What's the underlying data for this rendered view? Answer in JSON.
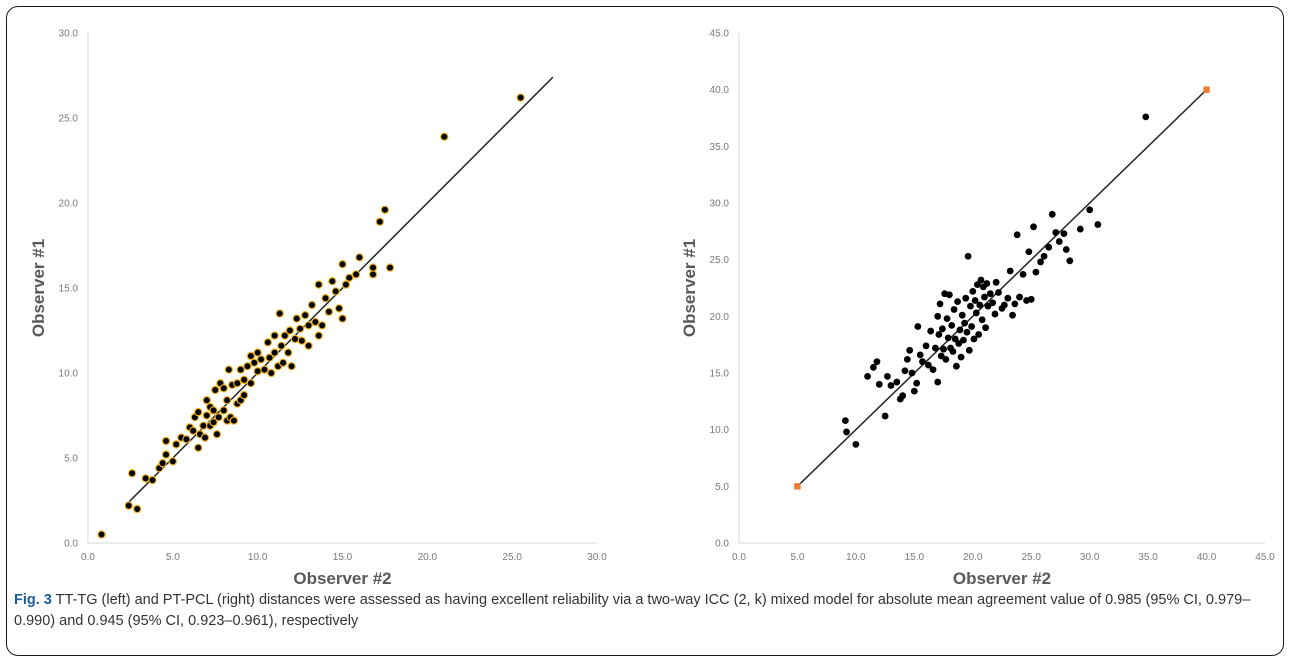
{
  "caption": {
    "label": "Fig. 3",
    "text": " TT-TG (left) and PT-PCL (right) distances were assessed as having excellent reliability via a two-way ICC (2, k) mixed model for absolute mean agreement value of 0.985 (95% CI, 0.979–0.990) and 0.945 (95% CI, 0.923–0.961), respectively"
  },
  "chart_data": [
    {
      "type": "scatter",
      "xlabel": "Observer #2",
      "ylabel": "Observer #1",
      "xlim": [
        0,
        30
      ],
      "ylim": [
        0,
        30
      ],
      "xticks": [
        "0.0",
        "5.0",
        "10.0",
        "15.0",
        "20.0",
        "25.0",
        "30.0"
      ],
      "yticks": [
        "0.0",
        "5.0",
        "10.0",
        "15.0",
        "20.0",
        "25.0",
        "30.0"
      ],
      "grid": false,
      "marker_color": "#000000",
      "marker_edge_color": "#f0b323",
      "trend_line": {
        "x": [
          2.4,
          27.4
        ],
        "y": [
          2.4,
          27.4
        ]
      },
      "points": [
        [
          0.8,
          0.5
        ],
        [
          2.4,
          2.2
        ],
        [
          2.6,
          4.1
        ],
        [
          2.9,
          2.0
        ],
        [
          3.4,
          3.8
        ],
        [
          3.8,
          3.7
        ],
        [
          4.2,
          4.4
        ],
        [
          4.4,
          4.7
        ],
        [
          4.6,
          5.2
        ],
        [
          4.6,
          6.0
        ],
        [
          5.0,
          4.8
        ],
        [
          5.2,
          5.8
        ],
        [
          5.5,
          6.2
        ],
        [
          5.8,
          6.1
        ],
        [
          6.0,
          6.8
        ],
        [
          6.2,
          6.6
        ],
        [
          6.3,
          7.4
        ],
        [
          6.5,
          5.6
        ],
        [
          6.5,
          7.7
        ],
        [
          6.6,
          6.4
        ],
        [
          6.8,
          6.9
        ],
        [
          6.9,
          6.2
        ],
        [
          7.0,
          7.5
        ],
        [
          7.0,
          8.4
        ],
        [
          7.2,
          6.9
        ],
        [
          7.2,
          8.0
        ],
        [
          7.4,
          7.1
        ],
        [
          7.4,
          7.8
        ],
        [
          7.5,
          9.0
        ],
        [
          7.6,
          6.4
        ],
        [
          7.7,
          7.4
        ],
        [
          7.8,
          9.4
        ],
        [
          8.0,
          7.8
        ],
        [
          8.0,
          9.1
        ],
        [
          8.2,
          7.2
        ],
        [
          8.2,
          8.4
        ],
        [
          8.3,
          10.2
        ],
        [
          8.4,
          7.4
        ],
        [
          8.5,
          9.3
        ],
        [
          8.6,
          7.2
        ],
        [
          8.8,
          8.2
        ],
        [
          8.8,
          9.4
        ],
        [
          9.0,
          8.4
        ],
        [
          9.0,
          10.2
        ],
        [
          9.2,
          8.7
        ],
        [
          9.2,
          9.6
        ],
        [
          9.4,
          10.4
        ],
        [
          9.6,
          11.0
        ],
        [
          9.6,
          9.4
        ],
        [
          9.8,
          10.6
        ],
        [
          10.0,
          11.2
        ],
        [
          10.0,
          10.1
        ],
        [
          10.2,
          10.8
        ],
        [
          10.4,
          10.2
        ],
        [
          10.6,
          11.8
        ],
        [
          10.7,
          10.9
        ],
        [
          10.8,
          10.0
        ],
        [
          11.0,
          12.2
        ],
        [
          11.0,
          11.2
        ],
        [
          11.2,
          10.4
        ],
        [
          11.3,
          13.5
        ],
        [
          11.4,
          11.6
        ],
        [
          11.5,
          10.6
        ],
        [
          11.6,
          12.2
        ],
        [
          11.8,
          11.2
        ],
        [
          11.9,
          12.5
        ],
        [
          12.0,
          10.4
        ],
        [
          12.2,
          12.0
        ],
        [
          12.3,
          13.2
        ],
        [
          12.5,
          12.6
        ],
        [
          12.6,
          11.9
        ],
        [
          12.8,
          13.4
        ],
        [
          13.0,
          12.8
        ],
        [
          13.0,
          11.6
        ],
        [
          13.2,
          14.0
        ],
        [
          13.4,
          13.0
        ],
        [
          13.6,
          12.2
        ],
        [
          13.6,
          15.2
        ],
        [
          13.8,
          12.8
        ],
        [
          14.0,
          14.4
        ],
        [
          14.2,
          13.6
        ],
        [
          14.4,
          15.4
        ],
        [
          14.6,
          14.8
        ],
        [
          14.8,
          13.8
        ],
        [
          15.0,
          13.2
        ],
        [
          15.0,
          16.4
        ],
        [
          15.2,
          15.2
        ],
        [
          15.4,
          15.6
        ],
        [
          15.8,
          15.8
        ],
        [
          16.0,
          16.8
        ],
        [
          16.8,
          15.8
        ],
        [
          16.8,
          16.2
        ],
        [
          17.2,
          18.9
        ],
        [
          17.5,
          19.6
        ],
        [
          17.8,
          16.2
        ],
        [
          21.0,
          23.9
        ],
        [
          25.5,
          26.2
        ]
      ]
    },
    {
      "type": "scatter",
      "xlabel": "Observer #2",
      "ylabel": "Observer #1",
      "xlim": [
        0,
        45
      ],
      "ylim": [
        0,
        45
      ],
      "xticks": [
        "0.0",
        "5.0",
        "10.0",
        "15.0",
        "20.0",
        "25.0",
        "30.0",
        "35.0",
        "40.0",
        "45.0"
      ],
      "yticks": [
        "0.0",
        "5.0",
        "10.0",
        "15.0",
        "20.0",
        "25.0",
        "30.0",
        "35.0",
        "40.0",
        "45.0"
      ],
      "grid": false,
      "marker_color": "#000000",
      "trend_line": {
        "x": [
          5,
          40
        ],
        "y": [
          5,
          40
        ]
      },
      "trend_endpoint_color": "#ed7d31",
      "points": [
        [
          9.1,
          10.8
        ],
        [
          9.2,
          9.8
        ],
        [
          10.0,
          8.7
        ],
        [
          11.0,
          14.7
        ],
        [
          11.5,
          15.5
        ],
        [
          11.8,
          16.0
        ],
        [
          12.0,
          14.0
        ],
        [
          12.5,
          11.2
        ],
        [
          12.7,
          14.7
        ],
        [
          13.0,
          13.9
        ],
        [
          13.5,
          14.2
        ],
        [
          13.8,
          12.7
        ],
        [
          14.0,
          13.0
        ],
        [
          14.2,
          15.2
        ],
        [
          14.4,
          16.2
        ],
        [
          14.6,
          17.0
        ],
        [
          14.8,
          15.0
        ],
        [
          15.0,
          13.4
        ],
        [
          15.2,
          14.1
        ],
        [
          15.3,
          19.1
        ],
        [
          15.5,
          16.6
        ],
        [
          15.7,
          16.0
        ],
        [
          16.0,
          17.4
        ],
        [
          16.2,
          15.7
        ],
        [
          16.4,
          18.7
        ],
        [
          16.6,
          15.3
        ],
        [
          16.8,
          17.2
        ],
        [
          17.0,
          20.0
        ],
        [
          17.0,
          14.2
        ],
        [
          17.1,
          18.4
        ],
        [
          17.2,
          21.1
        ],
        [
          17.3,
          16.5
        ],
        [
          17.4,
          18.9
        ],
        [
          17.5,
          17.1
        ],
        [
          17.6,
          22.0
        ],
        [
          17.7,
          16.2
        ],
        [
          17.8,
          19.8
        ],
        [
          17.9,
          18.1
        ],
        [
          18.0,
          21.9
        ],
        [
          18.1,
          17.2
        ],
        [
          18.2,
          19.2
        ],
        [
          18.3,
          16.9
        ],
        [
          18.4,
          20.6
        ],
        [
          18.5,
          18.0
        ],
        [
          18.6,
          15.6
        ],
        [
          18.7,
          21.3
        ],
        [
          18.8,
          17.6
        ],
        [
          18.9,
          18.8
        ],
        [
          19.0,
          16.4
        ],
        [
          19.1,
          20.1
        ],
        [
          19.2,
          17.9
        ],
        [
          19.3,
          19.4
        ],
        [
          19.4,
          21.6
        ],
        [
          19.5,
          18.6
        ],
        [
          19.6,
          25.3
        ],
        [
          19.7,
          17.0
        ],
        [
          19.8,
          20.9
        ],
        [
          19.9,
          19.1
        ],
        [
          20.0,
          22.2
        ],
        [
          20.1,
          18.0
        ],
        [
          20.2,
          21.4
        ],
        [
          20.3,
          20.3
        ],
        [
          20.4,
          22.8
        ],
        [
          20.5,
          18.4
        ],
        [
          20.6,
          21.0
        ],
        [
          20.7,
          23.2
        ],
        [
          20.8,
          19.7
        ],
        [
          20.9,
          22.6
        ],
        [
          21.0,
          21.7
        ],
        [
          21.1,
          19.0
        ],
        [
          21.2,
          22.9
        ],
        [
          21.3,
          20.9
        ],
        [
          21.5,
          22.0
        ],
        [
          21.7,
          21.2
        ],
        [
          21.9,
          20.2
        ],
        [
          22.0,
          23.0
        ],
        [
          22.2,
          22.1
        ],
        [
          22.5,
          20.7
        ],
        [
          22.7,
          21.0
        ],
        [
          23.0,
          21.6
        ],
        [
          23.2,
          24.0
        ],
        [
          23.4,
          20.1
        ],
        [
          23.6,
          21.1
        ],
        [
          23.8,
          27.2
        ],
        [
          24.0,
          21.7
        ],
        [
          24.3,
          23.7
        ],
        [
          24.6,
          21.4
        ],
        [
          24.8,
          25.7
        ],
        [
          25.0,
          21.5
        ],
        [
          25.2,
          27.9
        ],
        [
          25.4,
          23.9
        ],
        [
          25.8,
          24.8
        ],
        [
          26.1,
          25.3
        ],
        [
          26.5,
          26.1
        ],
        [
          26.8,
          29.0
        ],
        [
          27.1,
          27.4
        ],
        [
          27.4,
          26.6
        ],
        [
          27.8,
          27.3
        ],
        [
          28.0,
          25.9
        ],
        [
          28.3,
          24.9
        ],
        [
          29.2,
          27.7
        ],
        [
          30.0,
          29.4
        ],
        [
          30.7,
          28.1
        ],
        [
          34.8,
          37.6
        ]
      ]
    }
  ]
}
